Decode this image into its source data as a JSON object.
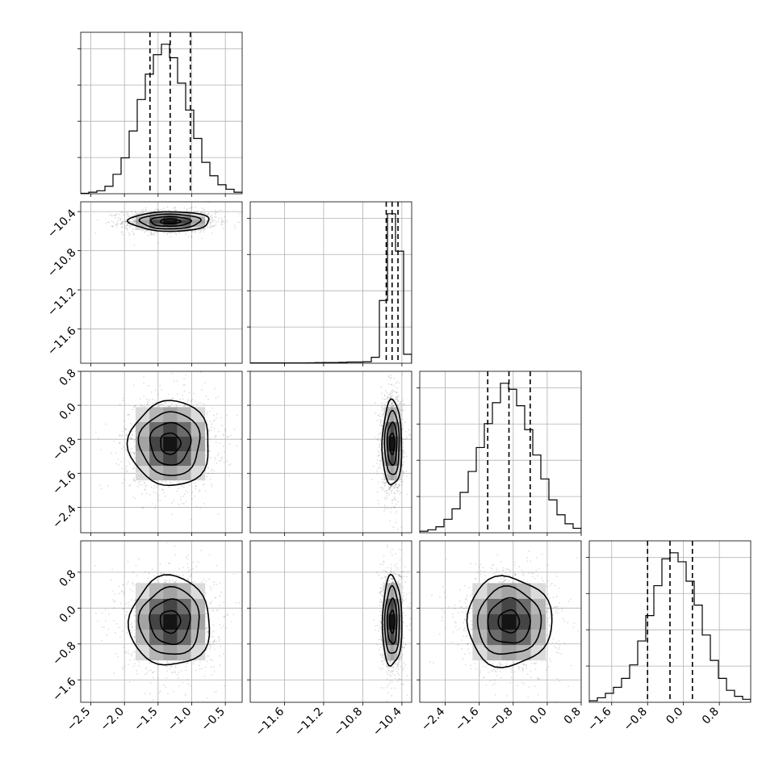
{
  "chart_data": {
    "type": "corner",
    "parameters": [
      {
        "index": 0,
        "range": [
          -2.65,
          -0.25
        ],
        "ticks": [
          -2.5,
          -2.0,
          -1.5,
          -1.0,
          -0.5
        ],
        "tick_labels": [
          "−2.5",
          "−2.0",
          "−1.5",
          "−1.0",
          "−0.5"
        ],
        "median": -1.32,
        "quantiles": [
          -1.62,
          -1.32,
          -1.02
        ],
        "std": 0.3,
        "hist_counts": [
          0.3,
          1,
          2,
          5,
          13,
          24,
          42,
          63,
          80,
          93,
          100,
          91,
          74,
          56,
          37,
          21,
          12,
          6,
          3,
          1
        ]
      },
      {
        "index": 1,
        "range": [
          -11.95,
          -10.3
        ],
        "ticks": [
          -11.6,
          -11.2,
          -10.8,
          -10.4
        ],
        "tick_labels": [
          "−11.6",
          "−11.2",
          "−10.8",
          "−10.4"
        ],
        "median": -10.5,
        "quantiles": [
          -10.56,
          -10.5,
          -10.44
        ],
        "std": 0.05,
        "hist_counts": [
          0.2,
          0.2,
          0.2,
          0.2,
          0.2,
          0.2,
          0.2,
          0.3,
          0.4,
          0.5,
          0.5,
          0.6,
          0.8,
          0.8,
          1,
          4,
          42,
          100,
          75,
          6
        ]
      },
      {
        "index": 2,
        "range": [
          -3.0,
          0.8
        ],
        "ticks": [
          -2.4,
          -1.6,
          -0.8,
          0.0,
          0.8
        ],
        "tick_labels": [
          "−2.4",
          "−1.6",
          "−0.8",
          "0.0",
          "0.8"
        ],
        "median": -0.9,
        "quantiles": [
          -1.4,
          -0.9,
          -0.4
        ],
        "std": 0.5,
        "hist_counts": [
          1,
          2,
          4,
          9,
          16,
          27,
          41,
          57,
          73,
          87,
          100,
          96,
          85,
          69,
          52,
          36,
          22,
          12,
          6,
          3
        ]
      },
      {
        "index": 3,
        "range": [
          -2.1,
          1.5
        ],
        "ticks": [
          -1.6,
          -0.8,
          0.0,
          0.8
        ],
        "tick_labels": [
          "−1.6",
          "−0.8",
          "0.0",
          "0.8"
        ],
        "median": -0.3,
        "quantiles": [
          -0.8,
          -0.3,
          0.2
        ],
        "std": 0.5,
        "hist_counts": [
          1,
          3,
          6,
          10,
          16,
          25,
          41,
          58,
          78,
          96,
          100,
          94,
          81,
          65,
          45,
          28,
          16,
          8,
          4,
          2
        ]
      }
    ],
    "ylabels_shown_for": [
      1,
      2,
      3
    ],
    "xlabels_shown_for": [
      0,
      1,
      2,
      3
    ],
    "contour_levels_sigma": [
      0.5,
      1.0,
      1.5,
      2.0
    ],
    "grid": true,
    "histogram_bins": 20,
    "colors": {
      "lines": "#000000",
      "grid": "#b0b0b0",
      "density_max": "#000000",
      "density_min": "#ffffff"
    }
  }
}
